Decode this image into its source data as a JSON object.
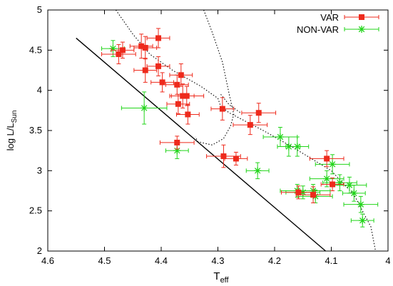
{
  "chart_data": {
    "type": "scatter",
    "xlabel": {
      "main": "T",
      "sub": "eff"
    },
    "ylabel": {
      "main": "log L/L",
      "sub": "Sun"
    },
    "xlim": [
      4.6,
      4.0
    ],
    "ylim": [
      2.0,
      5.0
    ],
    "x_ticks": [
      "4.6",
      "4.5",
      "4.4",
      "4.3",
      "4.2",
      "4.1",
      "4"
    ],
    "y_ticks": [
      "2",
      "2.5",
      "3",
      "3.5",
      "4",
      "4.5",
      "5"
    ],
    "x_tick_values": [
      4.6,
      4.5,
      4.4,
      4.3,
      4.2,
      4.1,
      4.0
    ],
    "y_tick_values": [
      2.0,
      2.5,
      3.0,
      3.5,
      4.0,
      4.5,
      5.0
    ],
    "grid": false,
    "legend_position": "top-right",
    "colors": {
      "var": "#ee2a1c",
      "nonvar": "#22d51a",
      "line": "#000000"
    },
    "series": [
      {
        "name": "VAR",
        "marker": "filled-square",
        "points": [
          {
            "x": 4.475,
            "y": 4.45,
            "xerr": 0.03,
            "yerr": 0.12
          },
          {
            "x": 4.468,
            "y": 4.5,
            "xerr": 0.02,
            "yerr": 0.1
          },
          {
            "x": 4.435,
            "y": 4.55,
            "xerr": 0.02,
            "yerr": 0.15
          },
          {
            "x": 4.428,
            "y": 4.53,
            "xerr": 0.02,
            "yerr": 0.14
          },
          {
            "x": 4.405,
            "y": 4.65,
            "xerr": 0.02,
            "yerr": 0.12
          },
          {
            "x": 4.428,
            "y": 4.25,
            "xerr": 0.02,
            "yerr": 0.15
          },
          {
            "x": 4.405,
            "y": 4.3,
            "xerr": 0.02,
            "yerr": 0.12
          },
          {
            "x": 4.398,
            "y": 4.1,
            "xerr": 0.02,
            "yerr": 0.12
          },
          {
            "x": 4.372,
            "y": 4.07,
            "xerr": 0.02,
            "yerr": 0.12
          },
          {
            "x": 4.365,
            "y": 4.19,
            "xerr": 0.02,
            "yerr": 0.14
          },
          {
            "x": 4.362,
            "y": 3.93,
            "xerr": 0.02,
            "yerr": 0.15
          },
          {
            "x": 4.355,
            "y": 3.93,
            "xerr": 0.03,
            "yerr": 0.12
          },
          {
            "x": 4.37,
            "y": 3.83,
            "xerr": 0.02,
            "yerr": 0.12
          },
          {
            "x": 4.353,
            "y": 3.7,
            "xerr": 0.02,
            "yerr": 0.12
          },
          {
            "x": 4.372,
            "y": 3.35,
            "xerr": 0.03,
            "yerr": 0.08
          },
          {
            "x": 4.292,
            "y": 3.77,
            "xerr": 0.02,
            "yerr": 0.14
          },
          {
            "x": 4.29,
            "y": 3.18,
            "xerr": 0.03,
            "yerr": 0.14
          },
          {
            "x": 4.268,
            "y": 3.15,
            "xerr": 0.02,
            "yerr": 0.08
          },
          {
            "x": 4.243,
            "y": 3.57,
            "xerr": 0.03,
            "yerr": 0.12
          },
          {
            "x": 4.228,
            "y": 3.72,
            "xerr": 0.03,
            "yerr": 0.12
          },
          {
            "x": 4.108,
            "y": 3.15,
            "xerr": 0.03,
            "yerr": 0.1
          },
          {
            "x": 4.098,
            "y": 2.83,
            "xerr": 0.02,
            "yerr": 0.08
          },
          {
            "x": 4.132,
            "y": 2.7,
            "xerr": 0.03,
            "yerr": 0.1
          },
          {
            "x": 4.158,
            "y": 2.73,
            "xerr": 0.03,
            "yerr": 0.08
          }
        ]
      },
      {
        "name": "NON-VAR",
        "marker": "star",
        "points": [
          {
            "x": 4.485,
            "y": 4.52,
            "xerr": 0.02,
            "yerr": 0.1
          },
          {
            "x": 4.43,
            "y": 3.78,
            "xerr": 0.04,
            "yerr": 0.2
          },
          {
            "x": 4.372,
            "y": 3.25,
            "xerr": 0.02,
            "yerr": 0.1
          },
          {
            "x": 4.23,
            "y": 3.0,
            "xerr": 0.02,
            "yerr": 0.1
          },
          {
            "x": 4.19,
            "y": 3.42,
            "xerr": 0.03,
            "yerr": 0.12
          },
          {
            "x": 4.175,
            "y": 3.3,
            "xerr": 0.02,
            "yerr": 0.12
          },
          {
            "x": 4.16,
            "y": 3.3,
            "xerr": 0.02,
            "yerr": 0.12
          },
          {
            "x": 4.108,
            "y": 2.9,
            "xerr": 0.03,
            "yerr": 0.1
          },
          {
            "x": 4.098,
            "y": 3.08,
            "xerr": 0.03,
            "yerr": 0.12
          },
          {
            "x": 4.085,
            "y": 2.85,
            "xerr": 0.03,
            "yerr": 0.1
          },
          {
            "x": 4.068,
            "y": 2.82,
            "xerr": 0.03,
            "yerr": 0.1
          },
          {
            "x": 4.06,
            "y": 2.72,
            "xerr": 0.02,
            "yerr": 0.1
          },
          {
            "x": 4.048,
            "y": 2.58,
            "xerr": 0.03,
            "yerr": 0.1
          },
          {
            "x": 4.045,
            "y": 2.38,
            "xerr": 0.02,
            "yerr": 0.08
          },
          {
            "x": 4.16,
            "y": 2.75,
            "xerr": 0.03,
            "yerr": 0.08
          },
          {
            "x": 4.15,
            "y": 2.73,
            "xerr": 0.03,
            "yerr": 0.08
          },
          {
            "x": 4.132,
            "y": 2.75,
            "xerr": 0.03,
            "yerr": 0.08
          },
          {
            "x": 4.128,
            "y": 2.68,
            "xerr": 0.03,
            "yerr": 0.08
          }
        ]
      }
    ],
    "solid_line": [
      [
        4.55,
        4.65
      ],
      [
        4.11,
        2.0
      ]
    ],
    "dotted_curves": [
      [
        [
          4.48,
          5.0
        ],
        [
          4.45,
          4.7
        ],
        [
          4.42,
          4.45
        ],
        [
          4.38,
          4.25
        ],
        [
          4.33,
          4.05
        ],
        [
          4.3,
          3.9
        ],
        [
          4.295,
          3.8
        ],
        [
          4.28,
          3.72
        ],
        [
          4.22,
          3.5
        ],
        [
          4.17,
          3.3
        ],
        [
          4.1,
          3.0
        ],
        [
          4.06,
          2.7
        ],
        [
          4.03,
          2.3
        ],
        [
          4.022,
          2.0
        ]
      ],
      [
        [
          4.325,
          5.0
        ],
        [
          4.31,
          4.72
        ],
        [
          4.292,
          4.35
        ],
        [
          4.28,
          3.95
        ],
        [
          4.272,
          3.7
        ],
        [
          4.278,
          3.55
        ],
        [
          4.29,
          3.4
        ],
        [
          4.31,
          3.32
        ],
        [
          4.335,
          3.36
        ],
        [
          4.34,
          3.42
        ]
      ],
      [
        [
          4.295,
          3.95
        ],
        [
          4.28,
          3.82
        ],
        [
          4.26,
          3.72
        ]
      ]
    ]
  }
}
